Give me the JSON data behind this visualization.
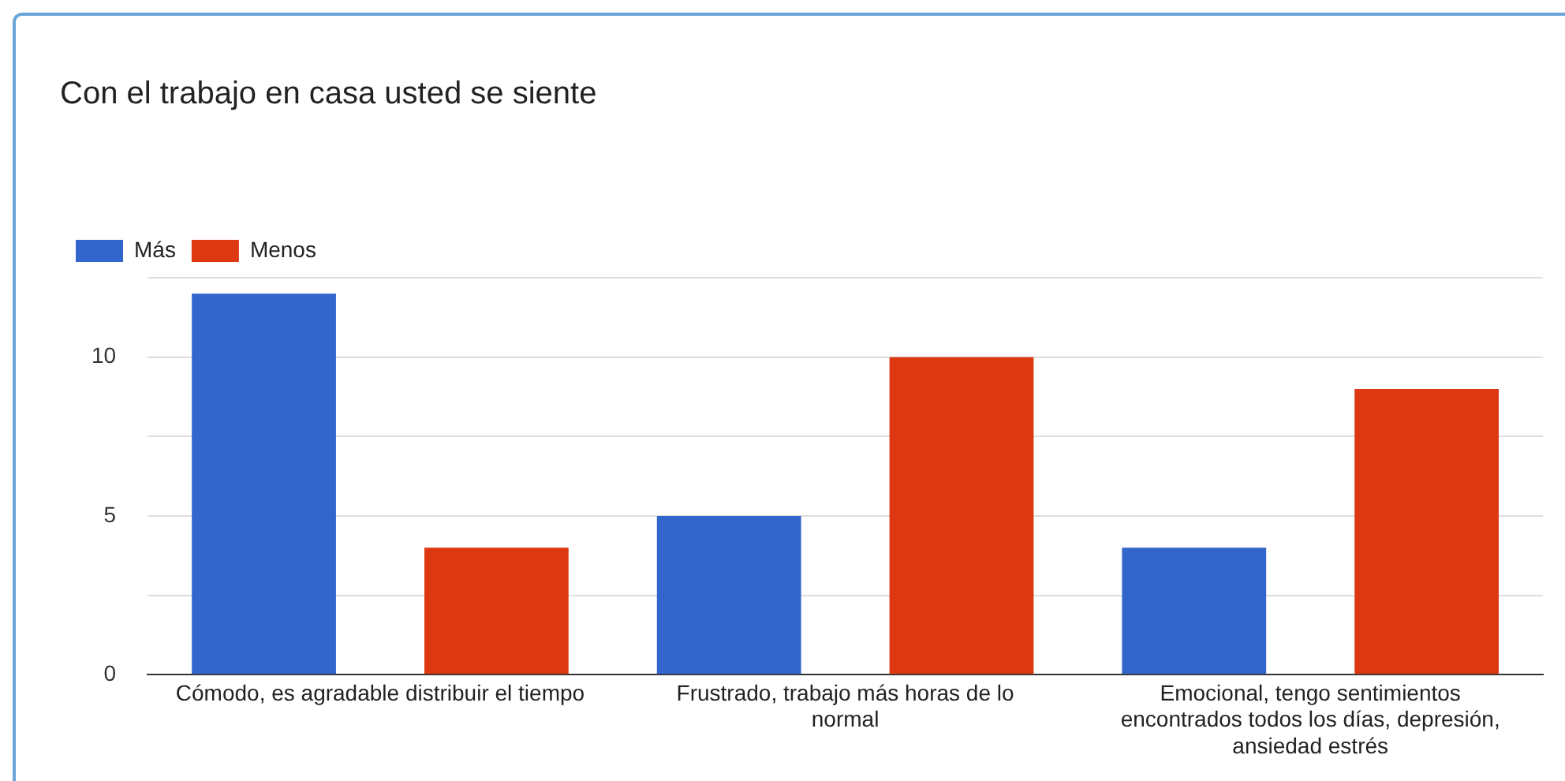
{
  "chart_data": {
    "type": "bar",
    "title": "Con el trabajo en casa usted se siente",
    "categories": [
      "Cómodo, es agradable distribuir el tiempo",
      "Frustrado, trabajo más horas de lo normal",
      "Emocional, tengo sentimientos encontrados todos los días, depresión, ansiedad estrés"
    ],
    "series": [
      {
        "name": "Más",
        "color": "#3366cc",
        "values": [
          12,
          5,
          4
        ]
      },
      {
        "name": "Menos",
        "color": "#dc3912",
        "values": [
          4,
          10,
          9
        ]
      }
    ],
    "ylim": [
      0,
      12.5
    ],
    "yticks": [
      0,
      {
        "value": 2.5,
        "label": null
      },
      5,
      {
        "value": 7.5,
        "label": null
      },
      10,
      {
        "value": 12.5,
        "label": null
      }
    ],
    "grid": "y",
    "legend": "top left"
  }
}
